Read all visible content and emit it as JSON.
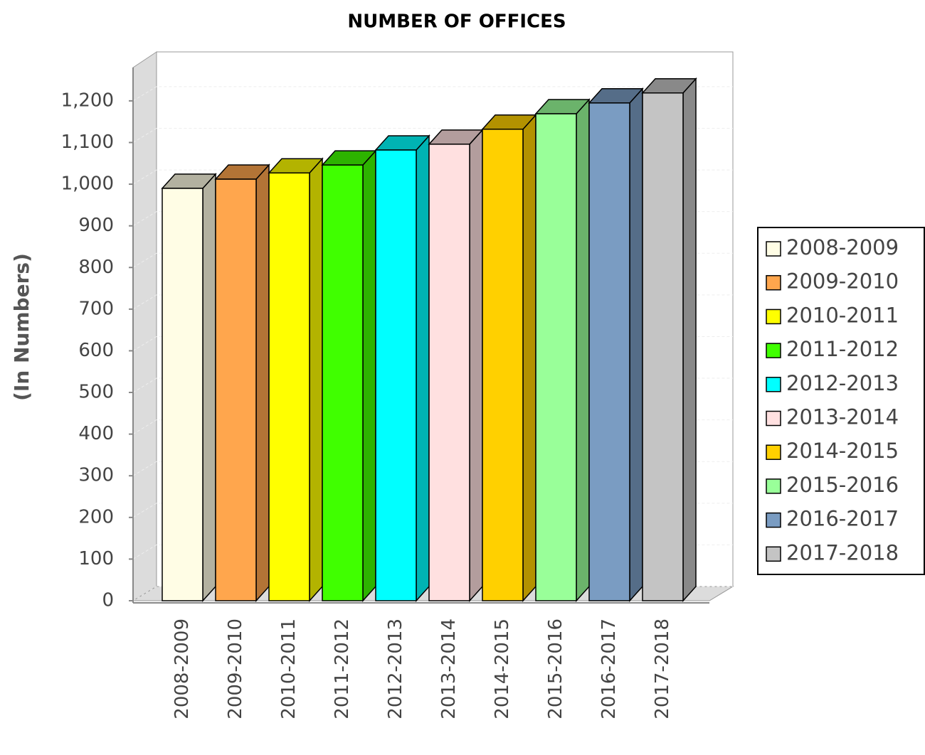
{
  "chart_data": {
    "type": "bar3d",
    "title": "NUMBER OF OFFICES",
    "y_label": "(In Numbers)",
    "categories": [
      "2008-2009",
      "2009-2010",
      "2010-2011",
      "2011-2012",
      "2012-2013",
      "2013-2014",
      "2014-2015",
      "2015-2016",
      "2016-2017",
      "2017-2018"
    ],
    "values": [
      990,
      1012,
      1027,
      1046,
      1082,
      1096,
      1132,
      1169,
      1195,
      1219
    ],
    "colors": [
      "#fffde5",
      "#ffa64d",
      "#ffff00",
      "#40ff00",
      "#00ffff",
      "#ffe0e0",
      "#ffd000",
      "#99ff99",
      "#7a9cc2",
      "#c4c4c4"
    ],
    "ylim": [
      0,
      1280
    ],
    "yticks": [
      0,
      100,
      200,
      300,
      400,
      500,
      600,
      700,
      800,
      900,
      {
        "value": 1000,
        "label": "1,000"
      },
      {
        "value": 1100,
        "label": "1,100"
      },
      {
        "value": 1200,
        "label": "1,200"
      }
    ],
    "grid": true,
    "legend": "right"
  }
}
